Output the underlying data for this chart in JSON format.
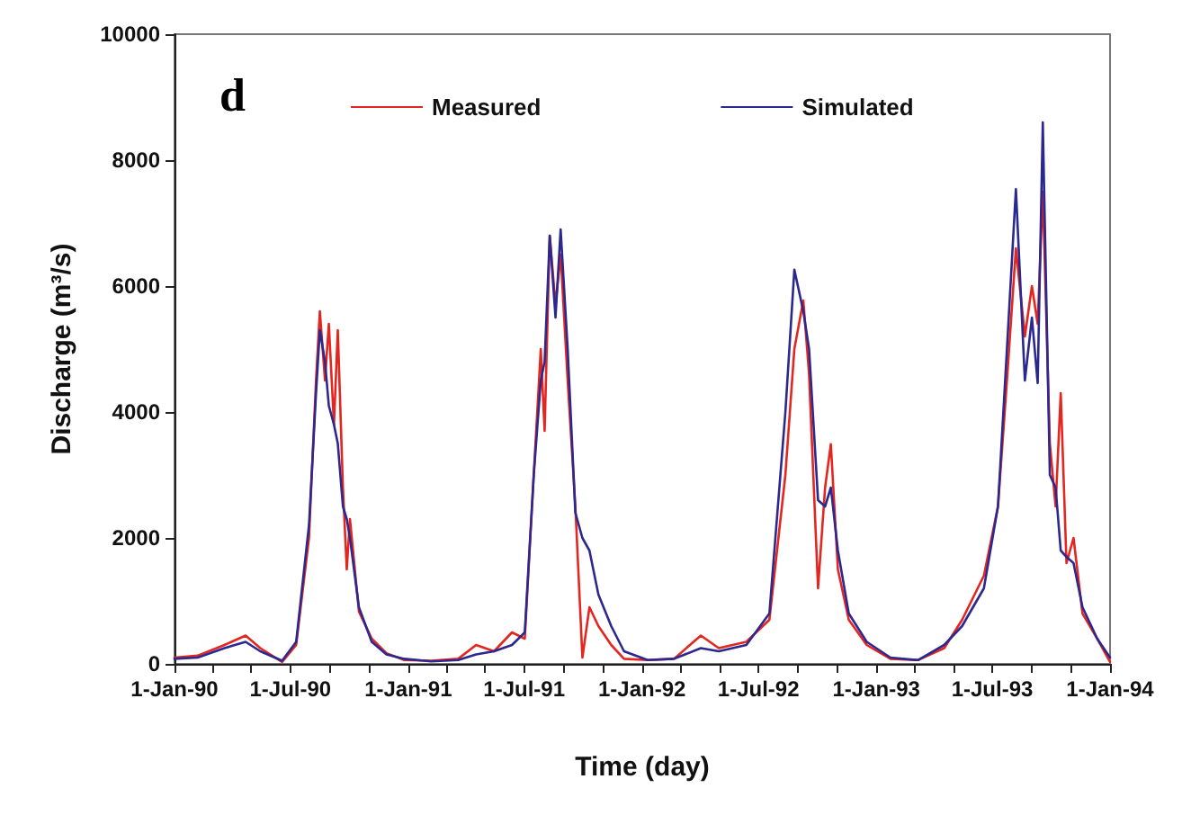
{
  "chart_data": {
    "type": "line",
    "xlabel": "Time (day)",
    "ylabel": "Discharge (m³/s)",
    "annotations": [
      "d"
    ],
    "xlim": [
      "1990-01-01",
      "1994-01-01"
    ],
    "xticks": [
      {
        "value": "1990-01-01",
        "label": "1-Jan-90"
      },
      {
        "value": "1990-03-01",
        "label": null
      },
      {
        "value": "1990-05-01",
        "label": null
      },
      {
        "value": "1990-07-01",
        "label": "1-Jul-90"
      },
      {
        "value": "1990-09-01",
        "label": null
      },
      {
        "value": "1990-11-01",
        "label": null
      },
      {
        "value": "1991-01-01",
        "label": "1-Jan-91"
      },
      {
        "value": "1991-03-01",
        "label": null
      },
      {
        "value": "1991-05-01",
        "label": null
      },
      {
        "value": "1991-07-01",
        "label": "1-Jul-91"
      },
      {
        "value": "1991-09-01",
        "label": null
      },
      {
        "value": "1991-11-01",
        "label": null
      },
      {
        "value": "1992-01-01",
        "label": "1-Jan-92"
      },
      {
        "value": "1992-03-01",
        "label": null
      },
      {
        "value": "1992-05-01",
        "label": null
      },
      {
        "value": "1992-07-01",
        "label": "1-Jul-92"
      },
      {
        "value": "1992-09-01",
        "label": null
      },
      {
        "value": "1992-11-01",
        "label": null
      },
      {
        "value": "1993-01-01",
        "label": "1-Jan-93"
      },
      {
        "value": "1993-03-01",
        "label": null
      },
      {
        "value": "1993-05-01",
        "label": null
      },
      {
        "value": "1993-07-01",
        "label": "1-Jul-93"
      },
      {
        "value": "1993-09-01",
        "label": null
      },
      {
        "value": "1993-11-01",
        "label": null
      },
      {
        "value": "1994-01-01",
        "label": "1-Jan-94"
      }
    ],
    "ylim": [
      0,
      10000
    ],
    "yticks": [
      0,
      2000,
      4000,
      6000,
      8000,
      10000
    ],
    "grid": false,
    "legend": "top",
    "marker": "none",
    "line_style": "solid",
    "series": [
      {
        "name": "Measured",
        "color": "#e3261f",
        "x": [
          "1990-01-01",
          "1990-02-06",
          "1990-03-20",
          "1990-04-22",
          "1990-05-15",
          "1990-06-18",
          "1990-07-10",
          "1990-07-30",
          "1990-08-10",
          "1990-08-16",
          "1990-08-24",
          "1990-08-30",
          "1990-09-07",
          "1990-09-13",
          "1990-09-21",
          "1990-09-27",
          "1990-10-02",
          "1990-10-16",
          "1990-11-05",
          "1990-11-28",
          "1990-12-26",
          "1991-02-06",
          "1991-03-20",
          "1991-04-17",
          "1991-05-15",
          "1991-06-12",
          "1991-07-02",
          "1991-07-16",
          "1991-07-27",
          "1991-08-02",
          "1991-08-10",
          "1991-08-19",
          "1991-08-27",
          "1991-09-07",
          "1991-09-19",
          "1991-09-30",
          "1991-10-11",
          "1991-10-25",
          "1991-11-14",
          "1991-12-04",
          "1992-01-10",
          "1992-02-20",
          "1992-04-02",
          "1992-04-30",
          "1992-06-12",
          "1992-07-18",
          "1992-08-12",
          "1992-08-26",
          "1992-09-09",
          "1992-09-18",
          "1992-10-02",
          "1992-10-13",
          "1992-10-22",
          "1992-11-02",
          "1992-11-19",
          "1992-12-17",
          "1993-01-23",
          "1993-03-07",
          "1993-04-17",
          "1993-05-15",
          "1993-06-18",
          "1993-07-10",
          "1993-07-24",
          "1993-08-07",
          "1993-08-21",
          "1993-09-01",
          "1993-09-10",
          "1993-09-18",
          "1993-09-29",
          "1993-10-08",
          "1993-10-16",
          "1993-10-25",
          "1993-11-05",
          "1993-11-19",
          "1993-12-12",
          "1994-01-01"
        ],
        "values": [
          100,
          130,
          300,
          450,
          250,
          30,
          300,
          2000,
          4500,
          5600,
          4500,
          5400,
          3800,
          5300,
          2800,
          1500,
          2300,
          830,
          400,
          170,
          60,
          50,
          80,
          300,
          200,
          500,
          400,
          3000,
          5000,
          3700,
          6800,
          5700,
          6500,
          4500,
          2500,
          100,
          900,
          600,
          300,
          80,
          60,
          80,
          450,
          250,
          350,
          700,
          3000,
          5000,
          5770,
          4600,
          1200,
          2800,
          3490,
          1500,
          700,
          300,
          80,
          60,
          250,
          700,
          1400,
          2500,
          4500,
          6600,
          5200,
          6000,
          5400,
          7500,
          3500,
          2500,
          4300,
          1600,
          2000,
          800,
          400,
          30
        ]
      },
      {
        "name": "Simulated",
        "color": "#2b2890",
        "x": [
          "1990-01-01",
          "1990-02-06",
          "1990-03-20",
          "1990-04-22",
          "1990-05-15",
          "1990-06-18",
          "1990-07-10",
          "1990-07-30",
          "1990-08-10",
          "1990-08-16",
          "1990-08-24",
          "1990-08-30",
          "1990-09-07",
          "1990-09-13",
          "1990-09-21",
          "1990-09-27",
          "1990-10-02",
          "1990-10-16",
          "1990-11-05",
          "1990-11-28",
          "1990-12-26",
          "1991-02-06",
          "1991-03-20",
          "1991-04-17",
          "1991-05-15",
          "1991-06-12",
          "1991-07-02",
          "1991-07-16",
          "1991-07-27",
          "1991-08-02",
          "1991-08-10",
          "1991-08-19",
          "1991-08-27",
          "1991-09-07",
          "1991-09-19",
          "1991-09-30",
          "1991-10-11",
          "1991-10-25",
          "1991-11-14",
          "1991-12-04",
          "1992-01-10",
          "1992-02-20",
          "1992-04-02",
          "1992-04-30",
          "1992-06-12",
          "1992-07-18",
          "1992-08-12",
          "1992-08-26",
          "1992-09-09",
          "1992-09-18",
          "1992-10-02",
          "1992-10-13",
          "1992-10-22",
          "1992-11-02",
          "1992-11-19",
          "1992-12-17",
          "1993-01-23",
          "1993-03-07",
          "1993-04-17",
          "1993-05-15",
          "1993-06-18",
          "1993-07-10",
          "1993-07-24",
          "1993-08-07",
          "1993-08-21",
          "1993-09-01",
          "1993-09-10",
          "1993-09-18",
          "1993-09-29",
          "1993-10-08",
          "1993-10-16",
          "1993-10-25",
          "1993-11-05",
          "1993-11-19",
          "1993-12-12",
          "1994-01-01"
        ],
        "values": [
          80,
          100,
          250,
          350,
          200,
          50,
          350,
          2200,
          4300,
          5300,
          4800,
          4100,
          3800,
          3500,
          2500,
          2300,
          2000,
          900,
          350,
          150,
          80,
          40,
          60,
          150,
          200,
          300,
          500,
          3000,
          4500,
          4800,
          6800,
          5500,
          6900,
          5000,
          2400,
          2000,
          1800,
          1100,
          600,
          200,
          60,
          80,
          250,
          200,
          300,
          800,
          4000,
          6260,
          5600,
          5000,
          2600,
          2500,
          2800,
          1800,
          800,
          350,
          100,
          60,
          300,
          600,
          1200,
          2500,
          5000,
          7540,
          4500,
          5500,
          4460,
          8600,
          3000,
          2800,
          1800,
          1700,
          1600,
          900,
          400,
          100
        ]
      }
    ]
  }
}
